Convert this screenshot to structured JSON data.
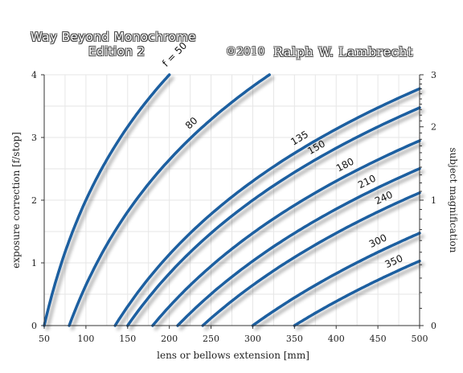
{
  "header": {
    "line1": "Way Beyond Monochrome",
    "line2": "Edition 2",
    "copyright": "©2010",
    "author": "Ralph W. Lambrecht"
  },
  "chart_data": {
    "type": "line",
    "xlabel": "lens or bellows extension [mm]",
    "ylabel": "exposure correction [f/stop]",
    "ylabel_right": "subject magnification",
    "xlim": [
      50,
      500
    ],
    "ylim": [
      0,
      4
    ],
    "x_ticks": [
      50,
      100,
      150,
      200,
      250,
      300,
      350,
      400,
      450,
      500
    ],
    "y_ticks": [
      0,
      1,
      2,
      3,
      4
    ],
    "right_ticks": [
      {
        "label": "0",
        "magnification": 0
      },
      {
        "label": "1",
        "magnification": 1
      },
      {
        "label": "2",
        "magnification": 2
      },
      {
        "label": "3",
        "magnification": 3
      }
    ],
    "grid": true,
    "line_color": "#1f5fa0",
    "series": [
      {
        "name": "f = 50",
        "focal_length": 50
      },
      {
        "name": "80",
        "focal_length": 80
      },
      {
        "name": "135",
        "focal_length": 135
      },
      {
        "name": "150",
        "focal_length": 150
      },
      {
        "name": "180",
        "focal_length": 180
      },
      {
        "name": "210",
        "focal_length": 210
      },
      {
        "name": "240",
        "focal_length": 240
      },
      {
        "name": "300",
        "focal_length": 300
      },
      {
        "name": "350",
        "focal_length": 350
      }
    ],
    "series_label_at_x": [
      215,
      235,
      363,
      383,
      417,
      443,
      463,
      456,
      475
    ]
  }
}
